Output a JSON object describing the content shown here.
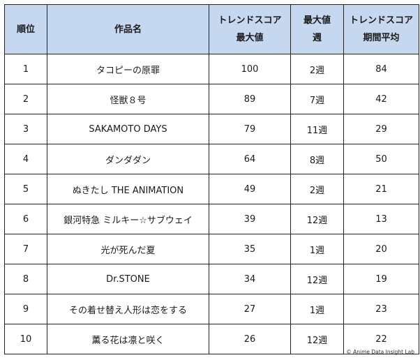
{
  "headers": {
    "rank": "順位",
    "title": "作品名",
    "trend_max": [
      "トレンドスコア",
      "最大値"
    ],
    "max_week": [
      "最大値",
      "週"
    ],
    "trend_avg": [
      "トレンドスコア",
      "期間平均"
    ]
  },
  "rows": [
    {
      "rank": "1",
      "title": "タコピーの原罪",
      "trend_max": "100",
      "max_week": "2週",
      "trend_avg": "84"
    },
    {
      "rank": "2",
      "title": "怪獣８号",
      "trend_max": "89",
      "max_week": "7週",
      "trend_avg": "42"
    },
    {
      "rank": "3",
      "title": "SAKAMOTO DAYS",
      "trend_max": "79",
      "max_week": "11週",
      "trend_avg": "29"
    },
    {
      "rank": "4",
      "title": "ダンダダン",
      "trend_max": "64",
      "max_week": "8週",
      "trend_avg": "50"
    },
    {
      "rank": "5",
      "title": "ぬきたし THE ANIMATION",
      "trend_max": "49",
      "max_week": "2週",
      "trend_avg": "21"
    },
    {
      "rank": "6",
      "title": "銀河特急 ミルキー☆サブウェイ",
      "trend_max": "39",
      "max_week": "12週",
      "trend_avg": "13"
    },
    {
      "rank": "7",
      "title": "光が死んだ夏",
      "trend_max": "35",
      "max_week": "1週",
      "trend_avg": "20"
    },
    {
      "rank": "8",
      "title": "Dr.STONE",
      "trend_max": "34",
      "max_week": "12週",
      "trend_avg": "19"
    },
    {
      "rank": "9",
      "title": "その着せ替え人形は恋をする",
      "trend_max": "27",
      "max_week": "1週",
      "trend_avg": "23"
    },
    {
      "rank": "10",
      "title": "薫る花は凛と咲く",
      "trend_max": "26",
      "max_week": "12週",
      "trend_avg": "22"
    }
  ],
  "credit": "© Anime Data Insight Lab"
}
